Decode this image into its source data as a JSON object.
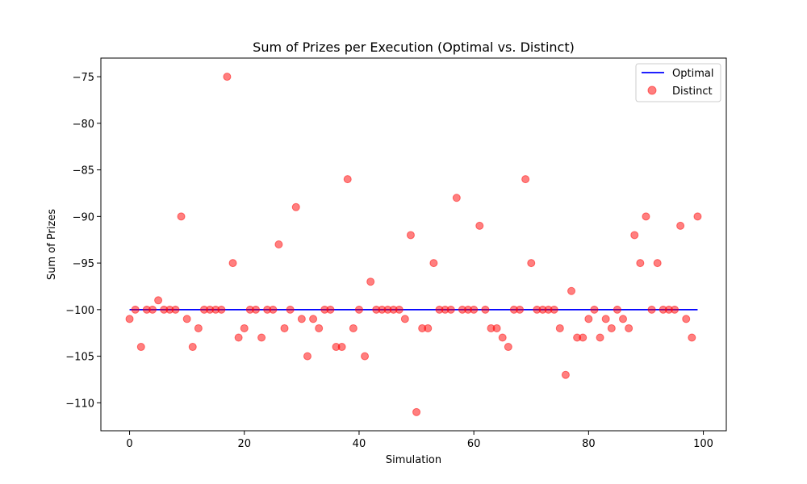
{
  "chart_data": {
    "type": "scatter",
    "title": "Sum of Prizes per Execution (Optimal vs. Distinct)",
    "xlabel": "Simulation",
    "ylabel": "Sum of Prizes",
    "xlim": [
      -5,
      104
    ],
    "ylim": [
      -113,
      -73
    ],
    "xticks": [
      0,
      20,
      40,
      60,
      80,
      100
    ],
    "yticks": [
      -75,
      -80,
      -85,
      -90,
      -95,
      -100,
      -105,
      -110
    ],
    "legend_position": "top-right",
    "grid": false,
    "series": [
      {
        "name": "Optimal",
        "kind": "line",
        "color": "#0000ff",
        "x": [
          0,
          99
        ],
        "y": [
          -100,
          -100
        ]
      },
      {
        "name": "Distinct",
        "kind": "scatter",
        "color": "#ff0000",
        "opacity": 0.5,
        "x": [
          0,
          1,
          2,
          3,
          4,
          5,
          6,
          7,
          8,
          9,
          10,
          11,
          12,
          13,
          14,
          15,
          16,
          17,
          18,
          19,
          20,
          21,
          22,
          23,
          24,
          25,
          26,
          27,
          28,
          29,
          30,
          31,
          32,
          33,
          34,
          35,
          36,
          37,
          38,
          39,
          40,
          41,
          42,
          43,
          44,
          45,
          46,
          47,
          48,
          49,
          50,
          51,
          52,
          53,
          54,
          55,
          56,
          57,
          58,
          59,
          60,
          61,
          62,
          63,
          64,
          65,
          66,
          67,
          68,
          69,
          70,
          71,
          72,
          73,
          74,
          75,
          76,
          77,
          78,
          79,
          80,
          81,
          82,
          83,
          84,
          85,
          86,
          87,
          88,
          89,
          90,
          91,
          92,
          93,
          94,
          95,
          96,
          97,
          98,
          99
        ],
        "y": [
          -101,
          -100,
          -104,
          -100,
          -100,
          -99,
          -100,
          -100,
          -100,
          -90,
          -101,
          -104,
          -102,
          -100,
          -100,
          -100,
          -100,
          -75,
          -95,
          -103,
          -102,
          -100,
          -100,
          -103,
          -100,
          -100,
          -93,
          -102,
          -100,
          -89,
          -101,
          -105,
          -101,
          -102,
          -100,
          -100,
          -104,
          -104,
          -86,
          -102,
          -100,
          -105,
          -97,
          -100,
          -100,
          -100,
          -100,
          -100,
          -101,
          -92,
          -111,
          -102,
          -102,
          -95,
          -100,
          -100,
          -100,
          -88,
          -100,
          -100,
          -100,
          -91,
          -100,
          -102,
          -102,
          -103,
          -104,
          -100,
          -100,
          -86,
          -95,
          -100,
          -100,
          -100,
          -100,
          -102,
          -107,
          -98,
          -103,
          -103,
          -101,
          -100,
          -103,
          -101,
          -102,
          -100,
          -101,
          -102,
          -92,
          -95,
          -90,
          -100,
          -95,
          -100,
          -100,
          -100,
          -91,
          -101,
          -103,
          -90
        ]
      }
    ]
  }
}
